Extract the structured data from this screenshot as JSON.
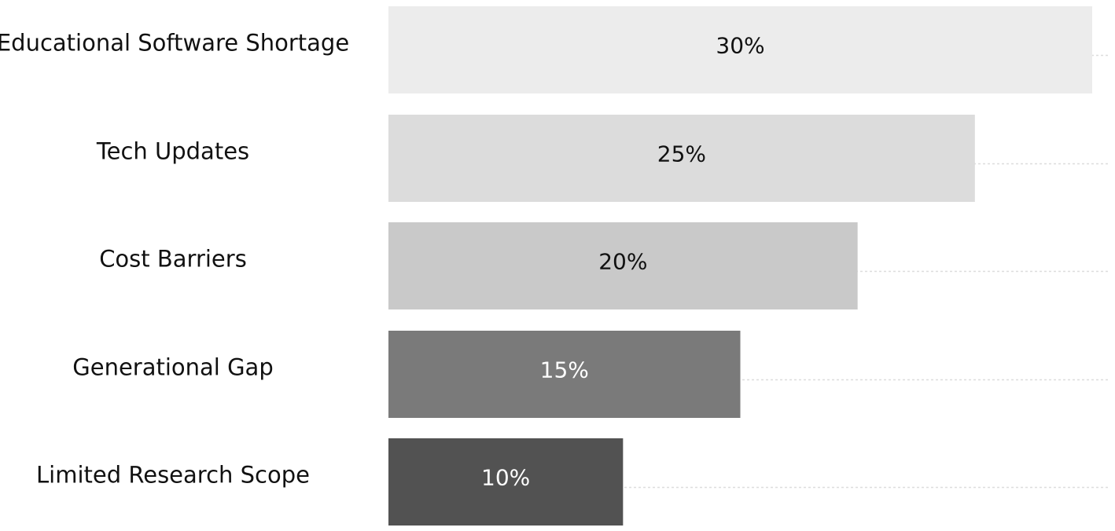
{
  "chart_data": {
    "type": "bar",
    "orientation": "horizontal",
    "categories": [
      "Educational Software Shortage",
      "Tech Updates",
      "Cost Barriers",
      "Generational Gap",
      "Limited Research Scope"
    ],
    "values": [
      30,
      25,
      20,
      15,
      10
    ],
    "value_labels": [
      "30%",
      "25%",
      "20%",
      "15%",
      "10%"
    ],
    "title": "",
    "xlabel": "",
    "ylabel": "",
    "xlim": [
      0,
      30
    ],
    "grid": true,
    "legend": "none",
    "bar_colors": [
      "#ececec",
      "#dcdcdc",
      "#c9c9c9",
      "#7a7a7a",
      "#525252"
    ],
    "label_colors": [
      "#111111",
      "#111111",
      "#111111",
      "#ffffff",
      "#ffffff"
    ]
  }
}
